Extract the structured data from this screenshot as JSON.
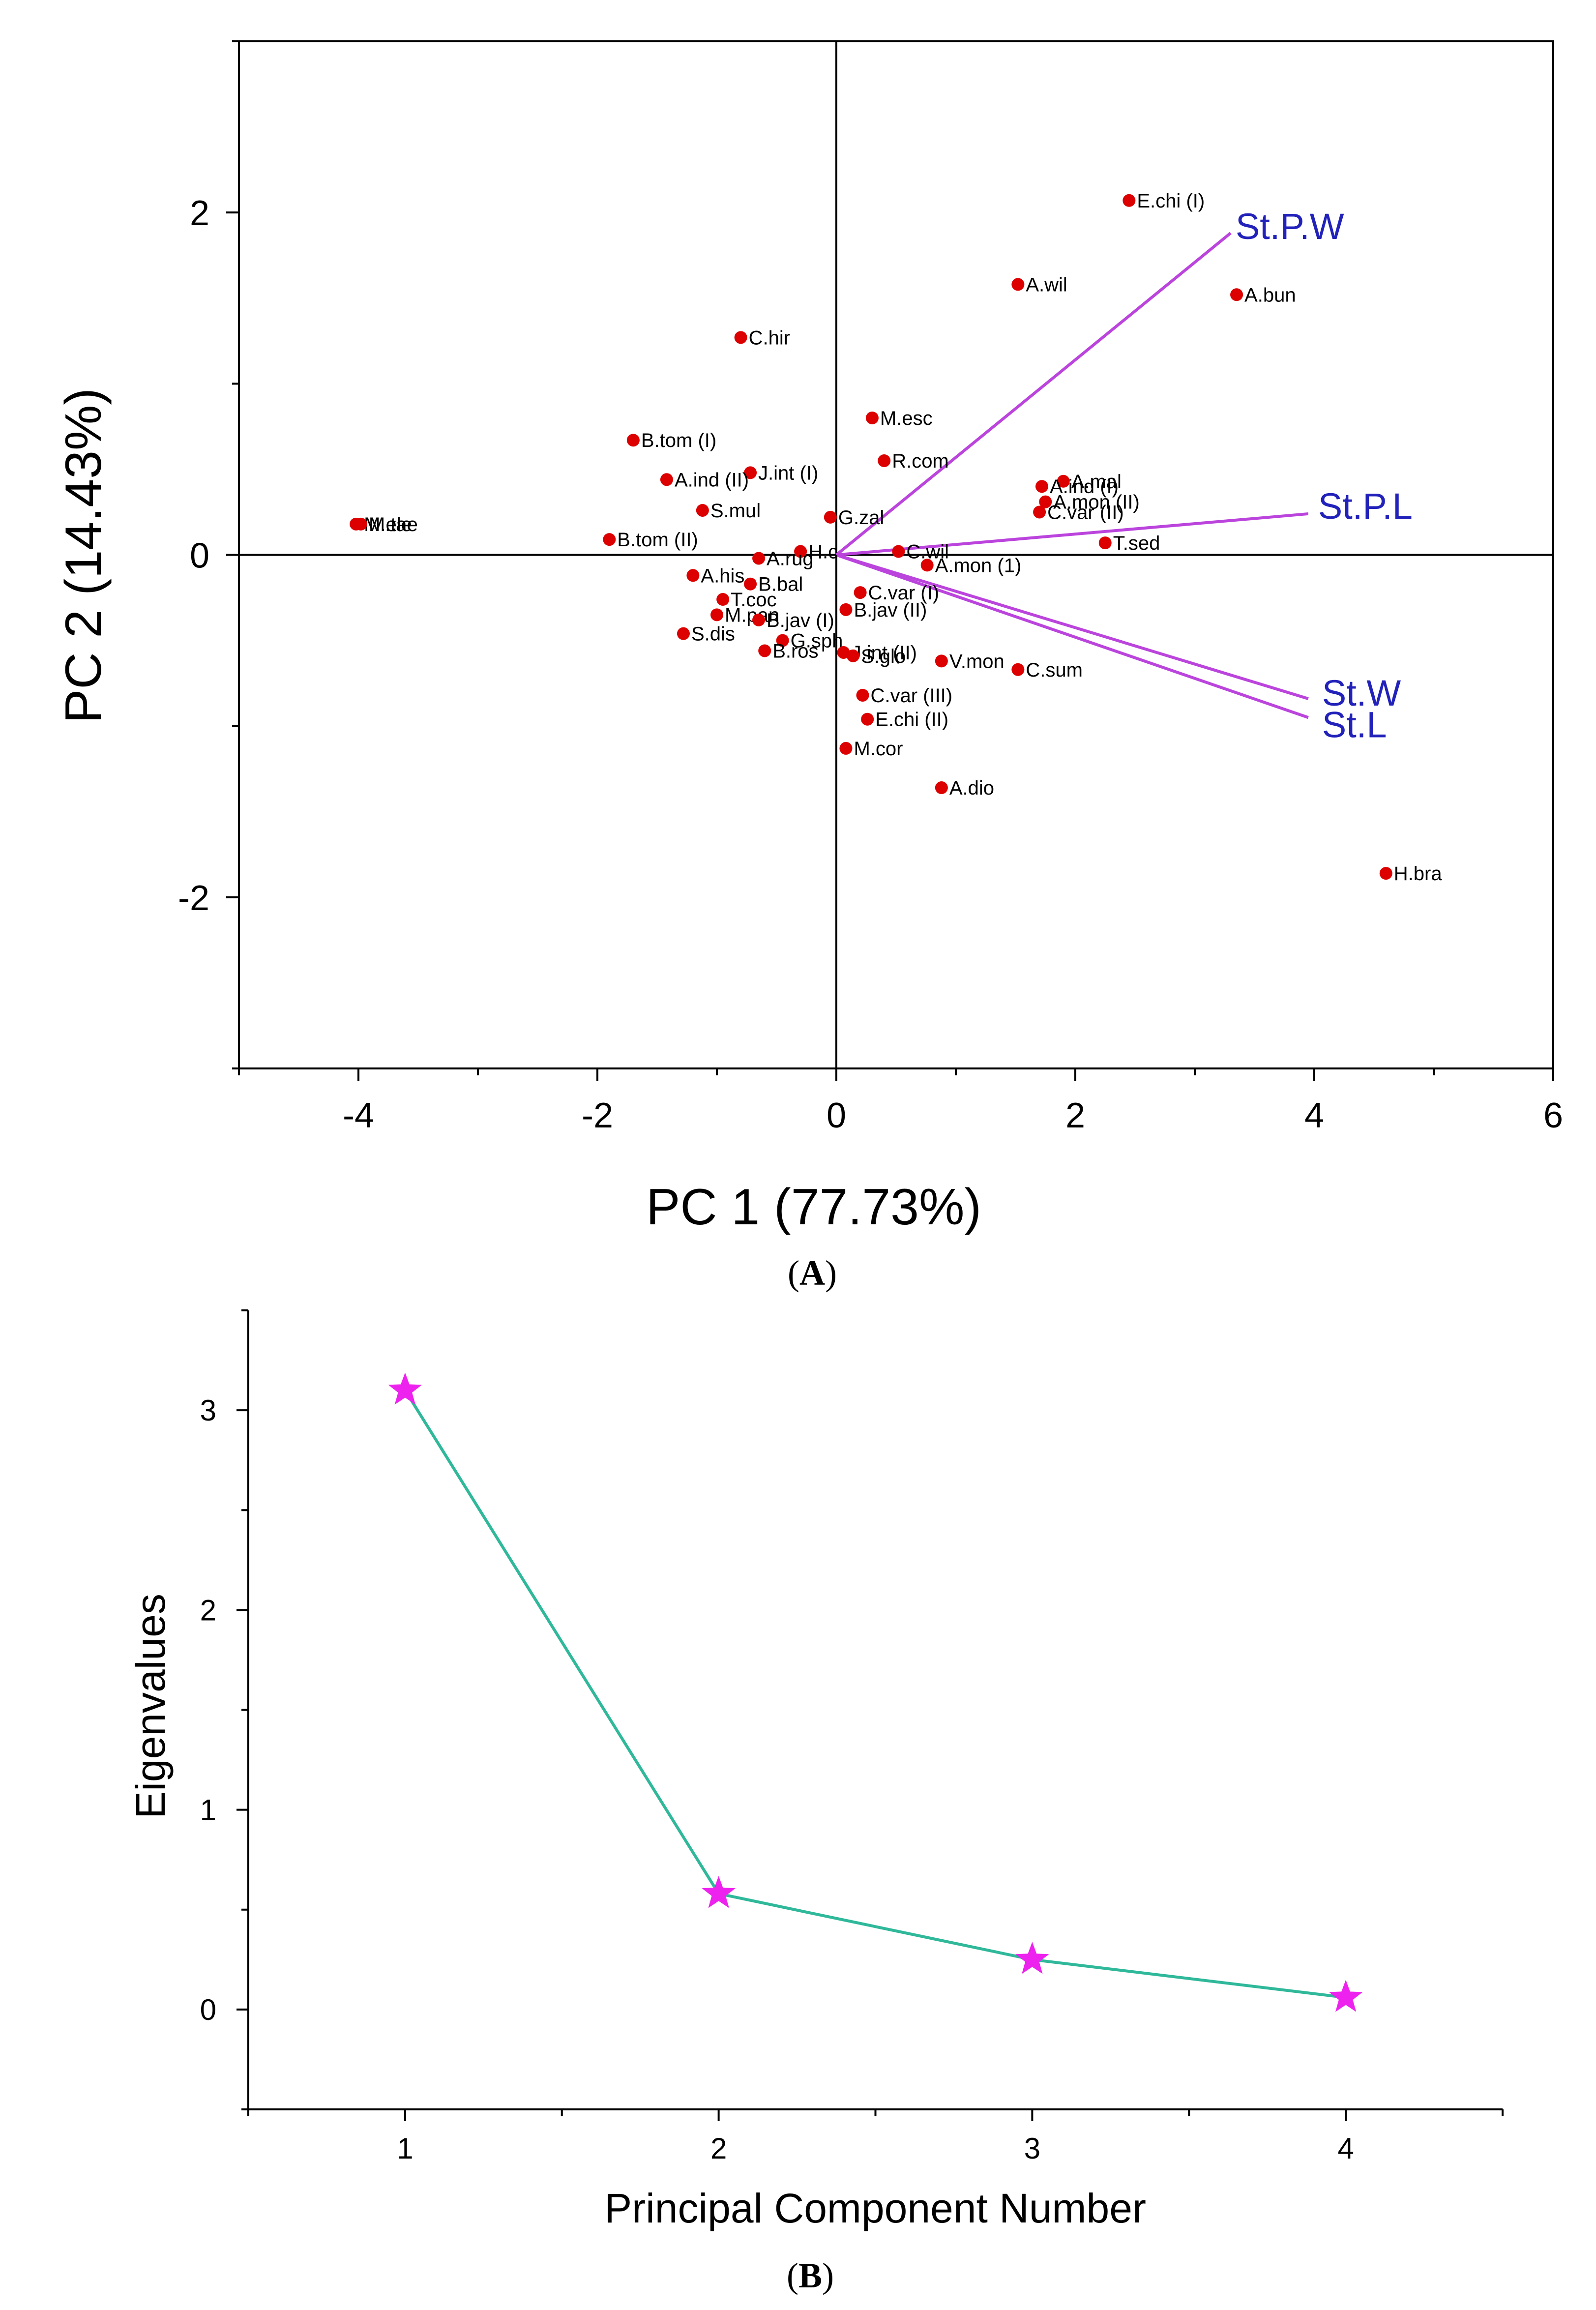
{
  "chart_data": [
    {
      "type": "scatter",
      "panel_label": "(A)",
      "panel_letter": "A",
      "xlabel": "PC 1 (77.73%)",
      "ylabel": "PC 2 (14.43%)",
      "xlim": [
        -5,
        6
      ],
      "ylim": [
        -3,
        3
      ],
      "xticks": [
        -4,
        -2,
        0,
        2,
        4,
        6
      ],
      "yticks": [
        -2,
        0,
        2
      ],
      "point_color": "#dd0000",
      "vector_color": "#bb44dd",
      "vector_label_color": "#2222bb",
      "points": [
        {
          "label": "E.chi (I)",
          "x": 2.45,
          "y": 2.07
        },
        {
          "label": "A.wil",
          "x": 1.52,
          "y": 1.58
        },
        {
          "label": "A.bun",
          "x": 3.35,
          "y": 1.52
        },
        {
          "label": "C.hir",
          "x": -0.8,
          "y": 1.27
        },
        {
          "label": "M.esc",
          "x": 0.3,
          "y": 0.8
        },
        {
          "label": "B.tom (I)",
          "x": -1.7,
          "y": 0.67
        },
        {
          "label": "R.com",
          "x": 0.4,
          "y": 0.55
        },
        {
          "label": "J.int (I)",
          "x": -0.72,
          "y": 0.48
        },
        {
          "label": "A.ind (II)",
          "x": -1.42,
          "y": 0.44
        },
        {
          "label": "A.mal",
          "x": 1.9,
          "y": 0.43
        },
        {
          "label": "A.ind (I)",
          "x": 1.72,
          "y": 0.4
        },
        {
          "label": "A.mon (II)",
          "x": 1.75,
          "y": 0.31
        },
        {
          "label": "C.var (II)",
          "x": 1.7,
          "y": 0.25
        },
        {
          "label": "S.mul",
          "x": -1.12,
          "y": 0.26
        },
        {
          "label": "G.zal",
          "x": -0.05,
          "y": 0.22
        },
        {
          "label": "M.ele",
          "x": -4.02,
          "y": 0.18
        },
        {
          "label": "M.tae",
          "x": -3.98,
          "y": 0.18
        },
        {
          "label": "B.tom (II)",
          "x": -1.9,
          "y": 0.09
        },
        {
          "label": "T.sed",
          "x": 2.25,
          "y": 0.07
        },
        {
          "label": "H.c",
          "x": -0.3,
          "y": 0.02
        },
        {
          "label": "C.wil",
          "x": 0.52,
          "y": 0.02
        },
        {
          "label": "A.rug",
          "x": -0.65,
          "y": -0.02
        },
        {
          "label": "A.mon (1)",
          "x": 0.76,
          "y": -0.06
        },
        {
          "label": "A.his",
          "x": -1.2,
          "y": -0.12
        },
        {
          "label": "B.bal",
          "x": -0.72,
          "y": -0.17
        },
        {
          "label": "C.var (I)",
          "x": 0.2,
          "y": -0.22
        },
        {
          "label": "T.coc",
          "x": -0.95,
          "y": -0.26
        },
        {
          "label": "B.jav (II)",
          "x": 0.08,
          "y": -0.32
        },
        {
          "label": "M.pan",
          "x": -1.0,
          "y": -0.35
        },
        {
          "label": "B.jav (I)",
          "x": -0.65,
          "y": -0.38
        },
        {
          "label": "S.dis",
          "x": -1.28,
          "y": -0.46
        },
        {
          "label": "G.sph",
          "x": -0.45,
          "y": -0.5
        },
        {
          "label": "B.ros",
          "x": -0.6,
          "y": -0.56
        },
        {
          "label": "J.int (II)",
          "x": 0.06,
          "y": -0.57
        },
        {
          "label": "S.glo",
          "x": 0.14,
          "y": -0.59
        },
        {
          "label": "V.mon",
          "x": 0.88,
          "y": -0.62
        },
        {
          "label": "C.sum",
          "x": 1.52,
          "y": -0.67
        },
        {
          "label": "C.var (III)",
          "x": 0.22,
          "y": -0.82
        },
        {
          "label": "E.chi (II)",
          "x": 0.26,
          "y": -0.96
        },
        {
          "label": "M.cor",
          "x": 0.08,
          "y": -1.13
        },
        {
          "label": "A.dio",
          "x": 0.88,
          "y": -1.36
        },
        {
          "label": "H.bra",
          "x": 4.6,
          "y": -1.86
        }
      ],
      "vectors": [
        {
          "label": "St.P.W",
          "x": 3.3,
          "y": 1.88
        },
        {
          "label": "St.P.L",
          "x": 3.95,
          "y": 0.24
        },
        {
          "label": "St.W",
          "x": 3.95,
          "y": -0.84
        },
        {
          "label": "St.L",
          "x": 3.95,
          "y": -0.95
        }
      ]
    },
    {
      "type": "line",
      "panel_label": "(B)",
      "panel_letter": "B",
      "xlabel": "Principal Component Number",
      "ylabel": "Eigenvalues",
      "xlim": [
        0.5,
        4.5
      ],
      "ylim": [
        -0.5,
        3.5
      ],
      "xticks": [
        1,
        2,
        3,
        4
      ],
      "yticks": [
        0,
        1,
        2,
        3
      ],
      "x": [
        1,
        2,
        3,
        4
      ],
      "values": [
        3.1,
        0.58,
        0.25,
        0.06
      ],
      "line_color": "#2fb89a",
      "marker_color": "#ee22ee",
      "marker": "star"
    }
  ]
}
